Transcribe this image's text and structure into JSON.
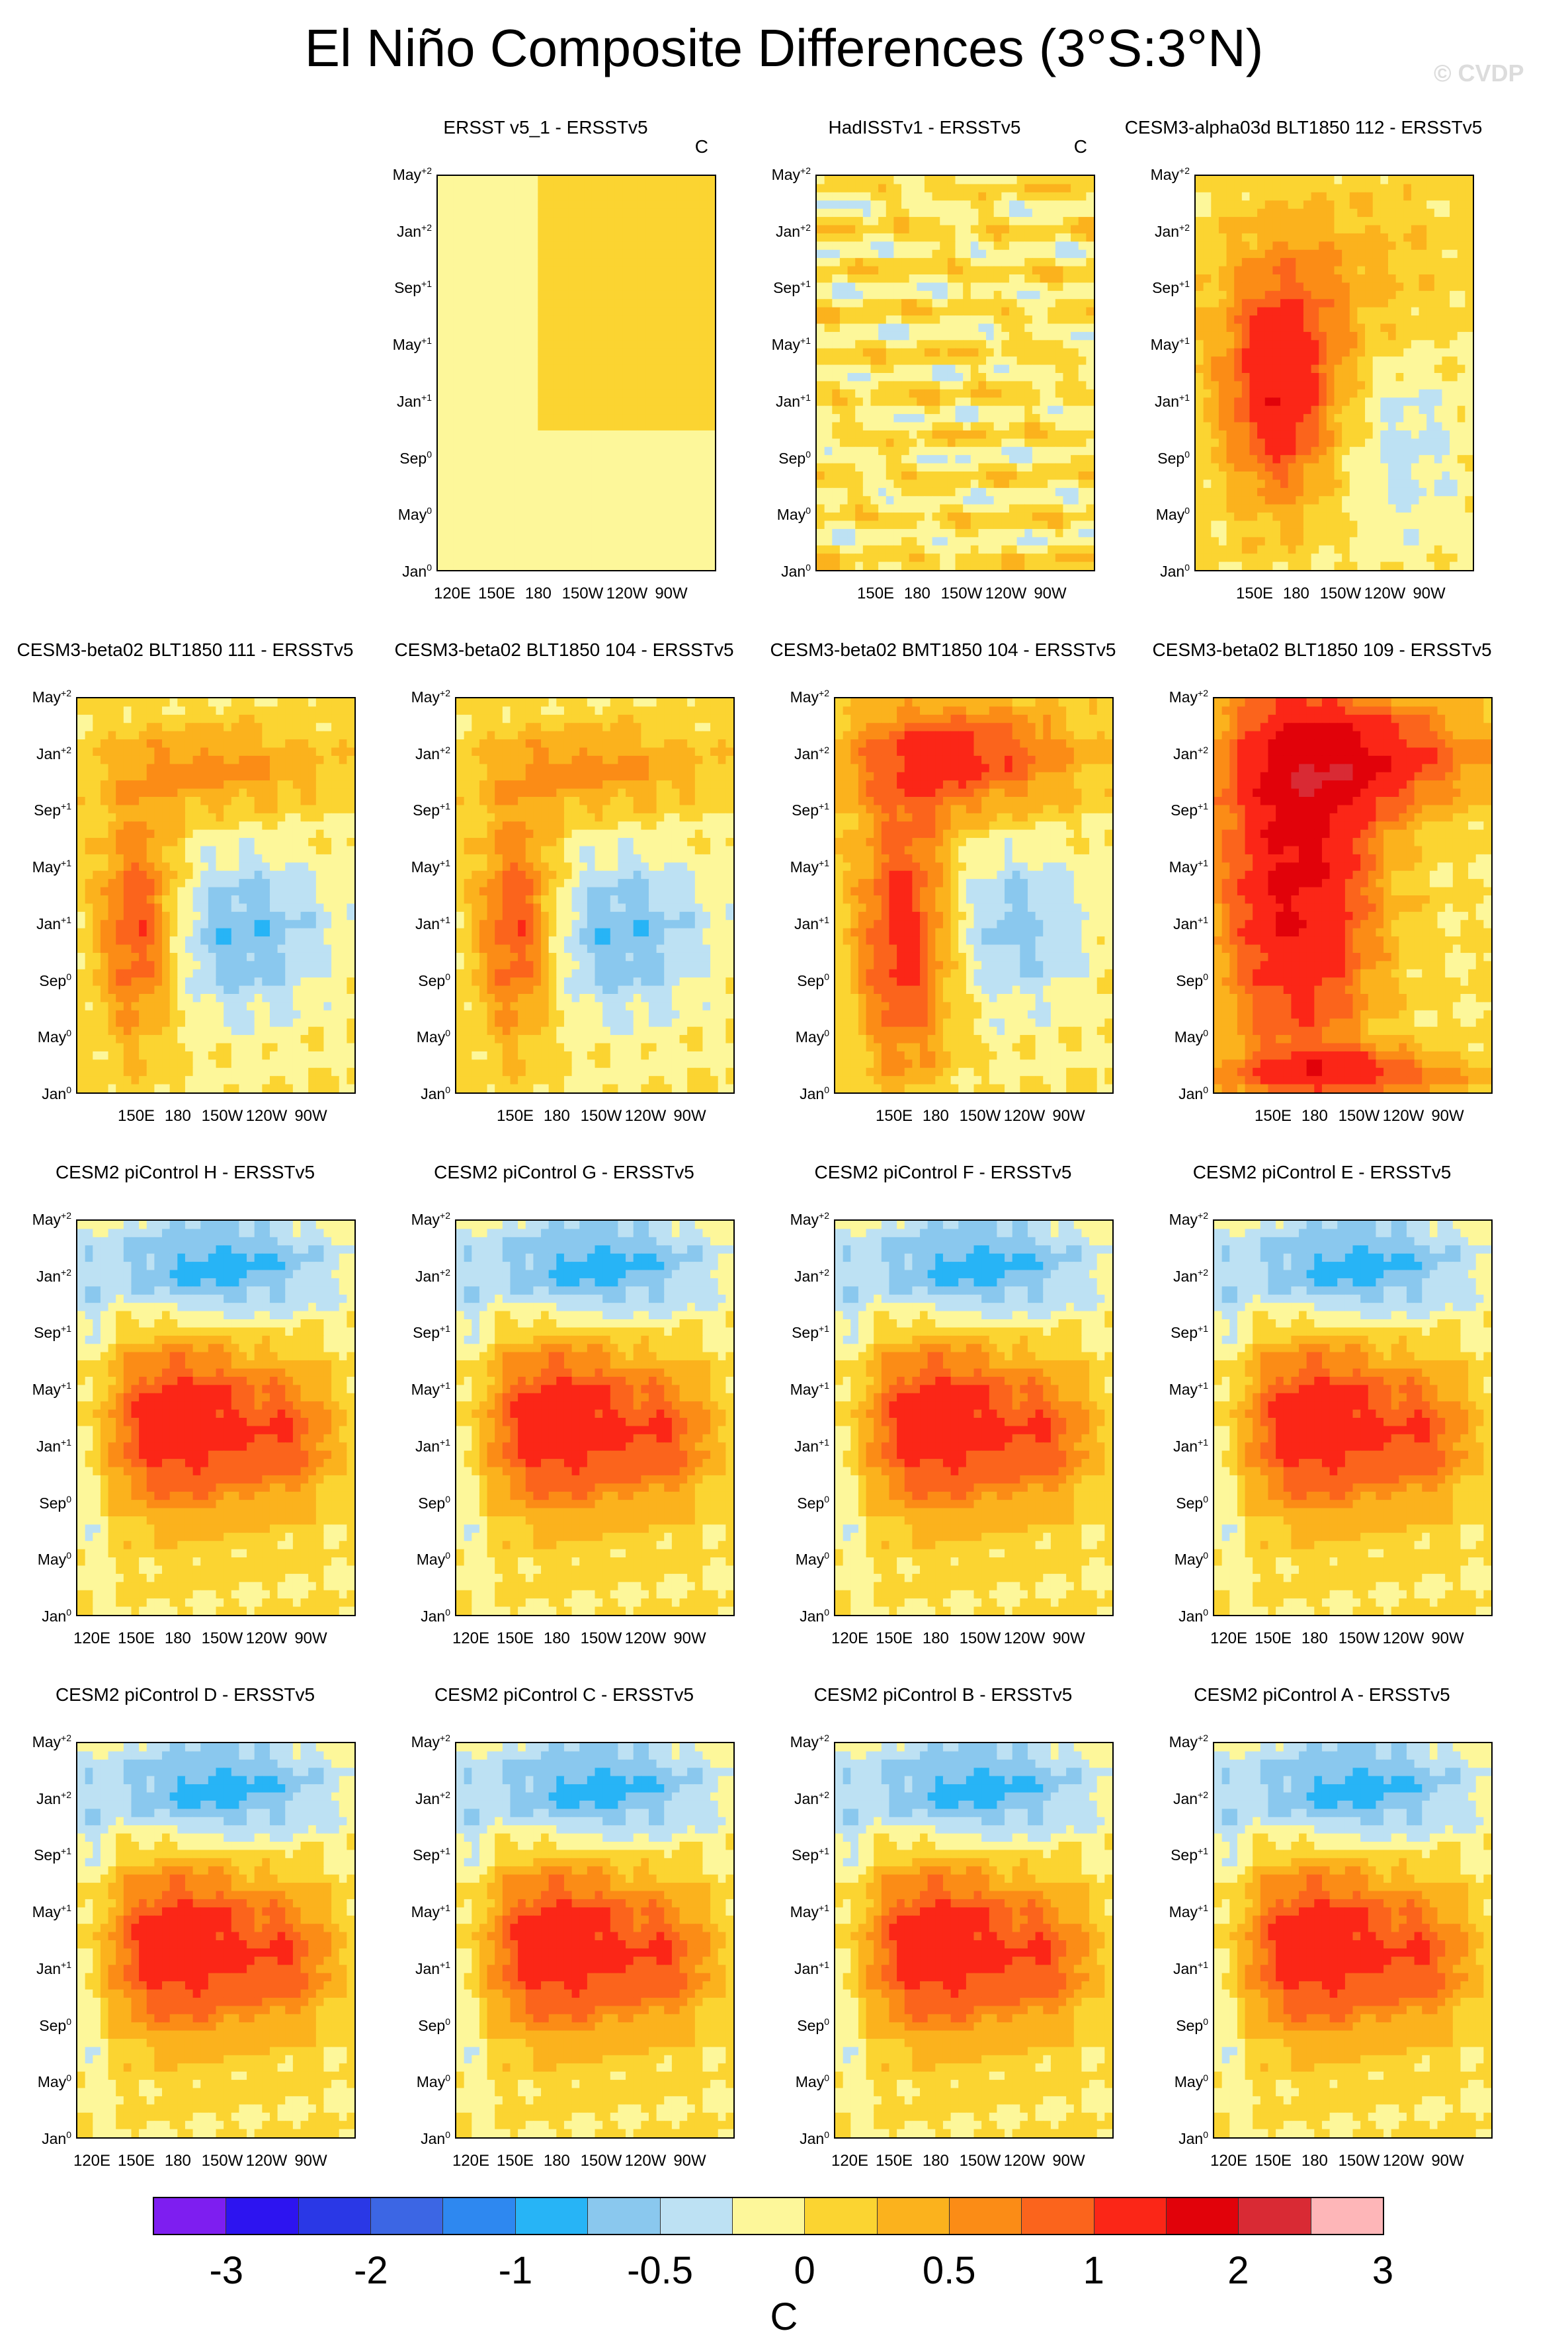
{
  "figure": {
    "title": "El Niño Composite Differences (3°S:3°N)",
    "watermark": "© CVDP",
    "units": "C"
  },
  "chart_data": {
    "type": "heatmap",
    "title": "El Niño Composite Differences (3°S:3°N)",
    "xlabel": "",
    "ylabel": "",
    "x_ticks": [
      "120E",
      "150E",
      "180",
      "150W",
      "120W",
      "90W"
    ],
    "y_ticks": [
      "Jan",
      "May",
      "Sep",
      "Jan",
      "May",
      "Sep",
      "Jan",
      "May"
    ],
    "y_tick_superscripts": [
      "0",
      "0",
      "0",
      "+1",
      "+1",
      "+1",
      "+2",
      "+2"
    ],
    "colorbar": {
      "levels": [
        "-3",
        "-2",
        "-1",
        "-0.5",
        "0",
        "0.5",
        "1",
        "2",
        "3"
      ],
      "colors": [
        "#7e1ef0",
        "#2d14f0",
        "#2a38e6",
        "#3c66e4",
        "#2e88f0",
        "#27b4f6",
        "#8ac8ee",
        "#bde1f3",
        "#fdf79a",
        "#fbd431",
        "#fbb21d",
        "#fb8c16",
        "#fb641c",
        "#fb2617",
        "#e1020a",
        "#d92a34",
        "#feb6b8"
      ],
      "units": "C"
    },
    "panels": [
      {
        "title": "ERSST v5_1 - ERSSTv5",
        "pattern": "near-zero",
        "units_label": "C",
        "x_ticks_shown": [
          "120E",
          "150E",
          "180",
          "150W",
          "120W",
          "90W"
        ]
      },
      {
        "title": "HadISSTv1 - ERSSTv5",
        "pattern": "noisy-weak",
        "units_label": "C",
        "x_ticks_shown": [
          "150E",
          "180",
          "150W",
          "120W",
          "90W"
        ]
      },
      {
        "title": "CESM3-alpha03d BLT1850 112 - ERSSTv5",
        "pattern": "warm-west",
        "x_ticks_shown": [
          "150E",
          "180",
          "150W",
          "120W",
          "90W"
        ]
      },
      {
        "title": "CESM3-beta02 BLT1850 111 - ERSSTv5",
        "pattern": "warm-cold-mix",
        "x_ticks_shown": [
          "150E",
          "180",
          "150W",
          "120W",
          "90W"
        ]
      },
      {
        "title": "CESM3-beta02 BLT1850 104 - ERSSTv5",
        "pattern": "warm-cold-mix",
        "x_ticks_shown": [
          "150E",
          "180",
          "150W",
          "120W",
          "90W"
        ]
      },
      {
        "title": "CESM3-beta02 BMT1850 104 - ERSSTv5",
        "pattern": "strong-warm",
        "x_ticks_shown": [
          "150E",
          "180",
          "150W",
          "120W",
          "90W"
        ]
      },
      {
        "title": "CESM3-beta02 BLT1850 109 - ERSSTv5",
        "pattern": "very-strong-warm",
        "x_ticks_shown": [
          "150E",
          "180",
          "150W",
          "120W",
          "90W"
        ]
      },
      {
        "title": "CESM2 piControl H - ERSSTv5",
        "pattern": "warm-mid-cold-top",
        "x_ticks_shown": [
          "120E",
          "150E",
          "180",
          "150W",
          "120W",
          "90W"
        ]
      },
      {
        "title": "CESM2 piControl G - ERSSTv5",
        "pattern": "warm-mid-cold-top",
        "x_ticks_shown": [
          "120E",
          "150E",
          "180",
          "150W",
          "120W",
          "90W"
        ]
      },
      {
        "title": "CESM2 piControl F - ERSSTv5",
        "pattern": "warm-mid-cold-top",
        "x_ticks_shown": [
          "120E",
          "150E",
          "180",
          "150W",
          "120W",
          "90W"
        ]
      },
      {
        "title": "CESM2 piControl E - ERSSTv5",
        "pattern": "warm-mid-cold-top",
        "x_ticks_shown": [
          "120E",
          "150E",
          "180",
          "150W",
          "120W",
          "90W"
        ]
      },
      {
        "title": "CESM2 piControl D - ERSSTv5",
        "pattern": "warm-mid-cold-top",
        "x_ticks_shown": [
          "120E",
          "150E",
          "180",
          "150W",
          "120W",
          "90W"
        ]
      },
      {
        "title": "CESM2 piControl C - ERSSTv5",
        "pattern": "warm-mid-cold-top",
        "x_ticks_shown": [
          "120E",
          "150E",
          "180",
          "150W",
          "120W",
          "90W"
        ]
      },
      {
        "title": "CESM2 piControl B - ERSSTv5",
        "pattern": "warm-mid-cold-top",
        "x_ticks_shown": [
          "120E",
          "150E",
          "180",
          "150W",
          "120W",
          "90W"
        ]
      },
      {
        "title": "CESM2 piControl A - ERSSTv5",
        "pattern": "warm-mid-cold-top",
        "x_ticks_shown": [
          "120E",
          "150E",
          "180",
          "150W",
          "120W",
          "90W"
        ]
      }
    ]
  }
}
